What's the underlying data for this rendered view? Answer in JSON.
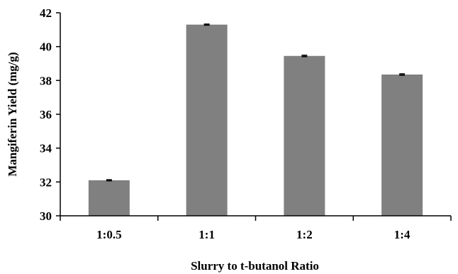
{
  "chart_data": {
    "type": "bar",
    "title": "",
    "xlabel": "Slurry to t-butanol Ratio",
    "ylabel": "Mangiferin Yield (mg/g)",
    "categories": [
      "1:0.5",
      "1:1",
      "1:2",
      "1:4"
    ],
    "values": [
      32.1,
      41.3,
      39.45,
      38.35
    ],
    "errors": [
      0.03,
      0.03,
      0.04,
      0.04
    ],
    "ylim": [
      30,
      42
    ],
    "yticks": [
      30,
      32,
      34,
      36,
      38,
      40,
      42
    ],
    "grid": false,
    "legend": "none",
    "bar_color": "#808080",
    "axis_color": "#000000"
  }
}
